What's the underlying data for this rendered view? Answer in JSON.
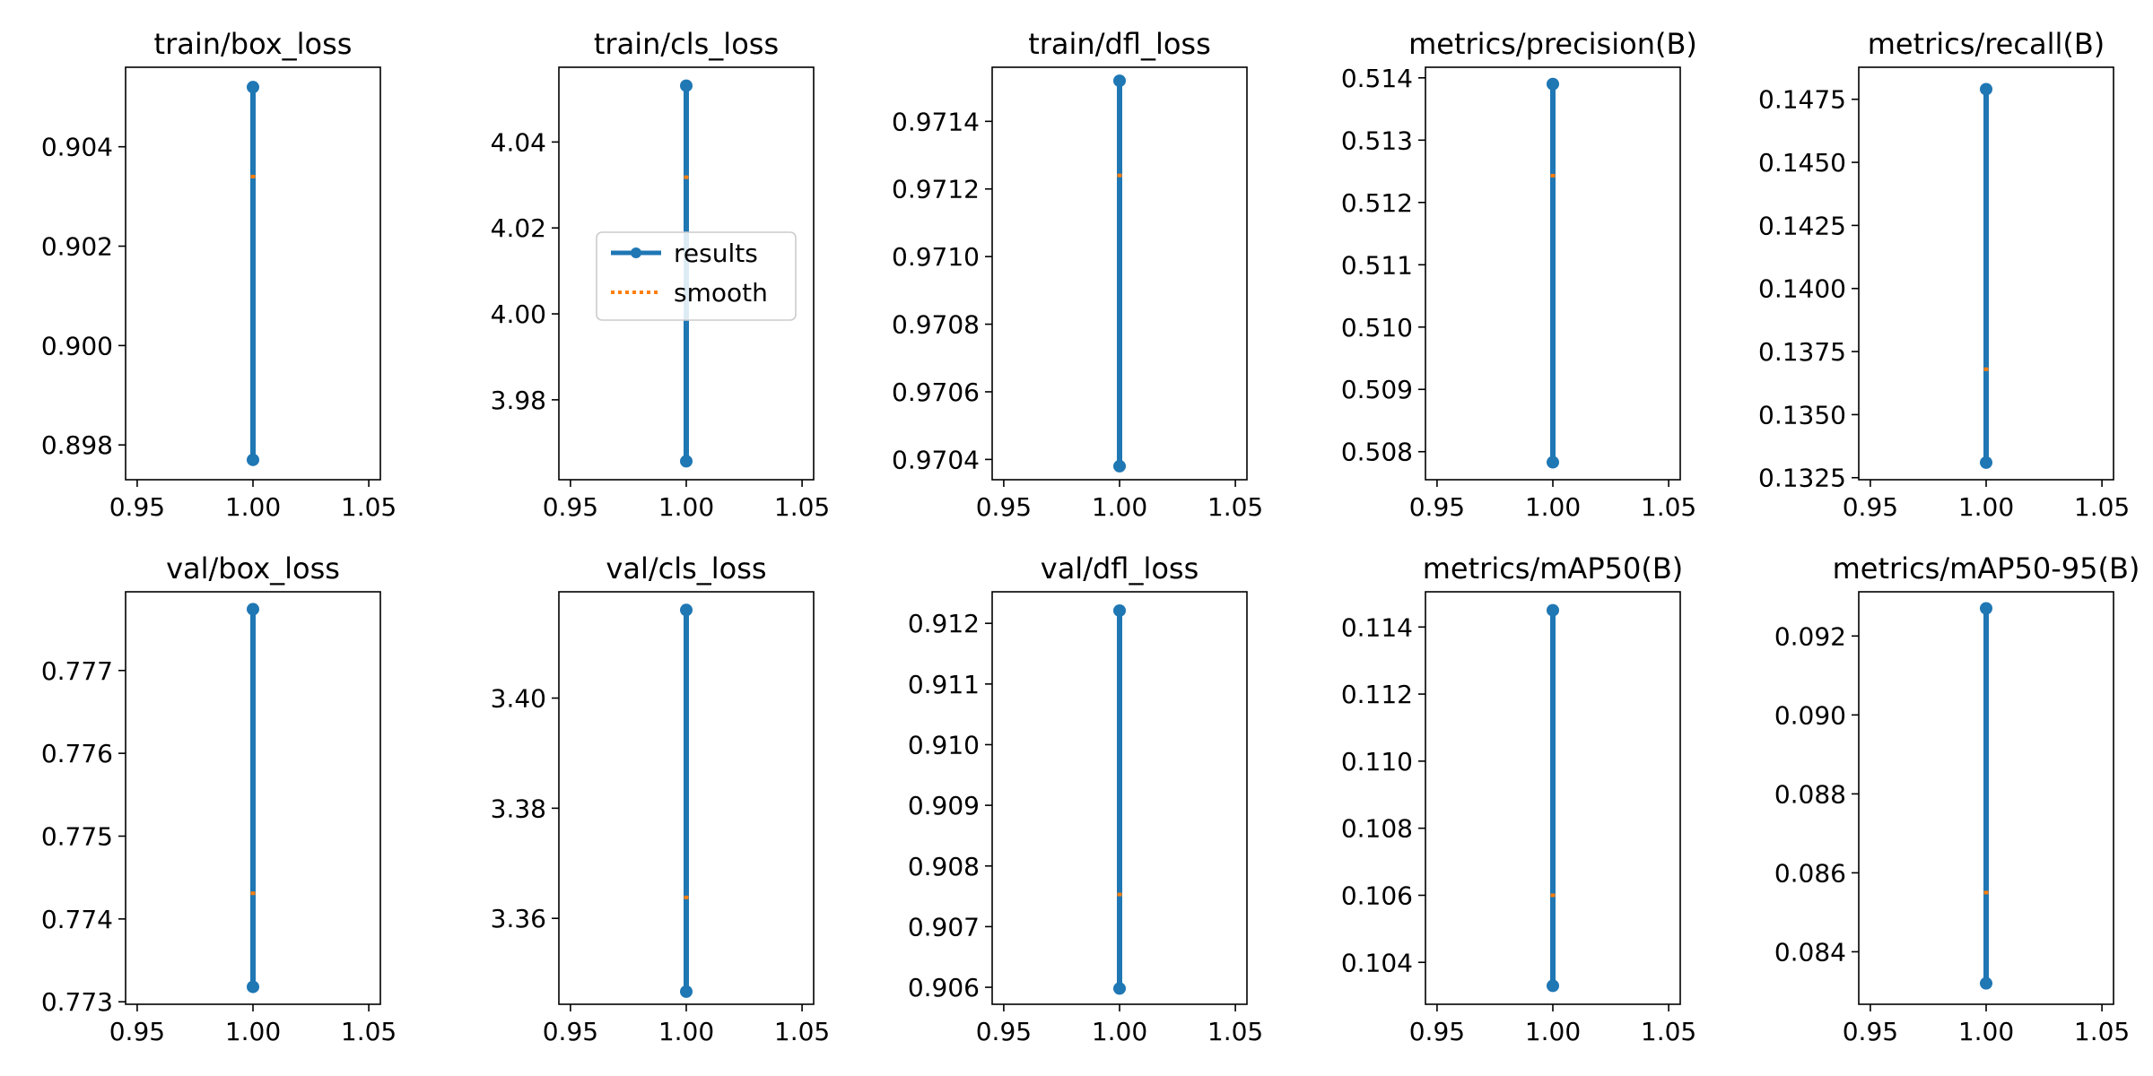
{
  "figure": {
    "colors": {
      "results": "#1f77b4",
      "smooth": "#ff7f0e",
      "axes": "#000000"
    },
    "legend": {
      "panel": 1,
      "location": "center-left",
      "entries": [
        "results",
        "smooth"
      ]
    }
  },
  "chart_data": [
    {
      "type": "line",
      "title": "train/box_loss",
      "xlim": [
        0.945,
        1.055
      ],
      "xticks": [
        "0.95",
        "1.00",
        "1.05"
      ],
      "ylim": [
        0.8973,
        0.9056
      ],
      "yticks": [
        0.898,
        0.9,
        0.902,
        0.904
      ],
      "ytick_labels": [
        "0.898",
        "0.900",
        "0.902",
        "0.904"
      ],
      "series": [
        {
          "name": "results",
          "x": [
            1.0,
            1.0
          ],
          "y": [
            0.8977,
            0.9052
          ]
        },
        {
          "name": "smooth",
          "x": [
            1.0,
            1.0
          ],
          "y": [
            0.9034,
            0.9034
          ]
        }
      ]
    },
    {
      "type": "line",
      "title": "train/cls_loss",
      "xlim": [
        0.945,
        1.055
      ],
      "xticks": [
        "0.95",
        "1.00",
        "1.05"
      ],
      "ylim": [
        3.9614,
        4.0574
      ],
      "yticks": [
        3.98,
        4.0,
        4.02,
        4.04
      ],
      "ytick_labels": [
        "3.98",
        "4.00",
        "4.02",
        "4.04"
      ],
      "series": [
        {
          "name": "results",
          "x": [
            1.0,
            1.0
          ],
          "y": [
            3.9657,
            4.0531
          ]
        },
        {
          "name": "smooth",
          "x": [
            1.0,
            1.0
          ],
          "y": [
            4.0318,
            4.0318
          ]
        }
      ]
    },
    {
      "type": "line",
      "title": "train/dfl_loss",
      "xlim": [
        0.945,
        1.055
      ],
      "xticks": [
        "0.95",
        "1.00",
        "1.05"
      ],
      "ylim": [
        0.97034,
        0.97156
      ],
      "yticks": [
        0.9704,
        0.9706,
        0.9708,
        0.971,
        0.9712,
        0.9714
      ],
      "ytick_labels": [
        "0.9704",
        "0.9706",
        "0.9708",
        "0.9710",
        "0.9712",
        "0.9714"
      ],
      "series": [
        {
          "name": "results",
          "x": [
            1.0,
            1.0
          ],
          "y": [
            0.97038,
            0.97152
          ]
        },
        {
          "name": "smooth",
          "x": [
            1.0,
            1.0
          ],
          "y": [
            0.97124,
            0.97124
          ]
        }
      ]
    },
    {
      "type": "line",
      "title": "metrics/precision(B)",
      "xlim": [
        0.945,
        1.055
      ],
      "xticks": [
        "0.95",
        "1.00",
        "1.05"
      ],
      "ylim": [
        0.50755,
        0.51417
      ],
      "yticks": [
        0.508,
        0.509,
        0.51,
        0.511,
        0.512,
        0.513,
        0.514
      ],
      "ytick_labels": [
        "0.508",
        "0.509",
        "0.510",
        "0.511",
        "0.512",
        "0.513",
        "0.514"
      ],
      "series": [
        {
          "name": "results",
          "x": [
            1.0,
            1.0
          ],
          "y": [
            0.50783,
            0.5139
          ]
        },
        {
          "name": "smooth",
          "x": [
            1.0,
            1.0
          ],
          "y": [
            0.51243,
            0.51243
          ]
        }
      ]
    },
    {
      "type": "line",
      "title": "metrics/recall(B)",
      "xlim": [
        0.945,
        1.055
      ],
      "xticks": [
        "0.95",
        "1.00",
        "1.05"
      ],
      "ylim": [
        0.13242,
        0.14877
      ],
      "yticks": [
        0.1325,
        0.135,
        0.1375,
        0.14,
        0.1425,
        0.145,
        0.1475
      ],
      "ytick_labels": [
        "0.1325",
        "0.1350",
        "0.1375",
        "0.1400",
        "0.1425",
        "0.1450",
        "0.1475"
      ],
      "series": [
        {
          "name": "results",
          "x": [
            1.0,
            1.0
          ],
          "y": [
            0.1331,
            0.1479
          ]
        },
        {
          "name": "smooth",
          "x": [
            1.0,
            1.0
          ],
          "y": [
            0.1368,
            0.1368
          ]
        }
      ]
    },
    {
      "type": "line",
      "title": "val/box_loss",
      "xlim": [
        0.945,
        1.055
      ],
      "xticks": [
        "0.95",
        "1.00",
        "1.05"
      ],
      "ylim": [
        0.77297,
        0.77795
      ],
      "yticks": [
        0.773,
        0.774,
        0.775,
        0.776,
        0.777
      ],
      "ytick_labels": [
        "0.773",
        "0.774",
        "0.775",
        "0.776",
        "0.777"
      ],
      "series": [
        {
          "name": "results",
          "x": [
            1.0,
            1.0
          ],
          "y": [
            0.77318,
            0.77774
          ]
        },
        {
          "name": "smooth",
          "x": [
            1.0,
            1.0
          ],
          "y": [
            0.77431,
            0.77431
          ]
        }
      ]
    },
    {
      "type": "line",
      "title": "val/cls_loss",
      "xlim": [
        0.945,
        1.055
      ],
      "xticks": [
        "0.95",
        "1.00",
        "1.05"
      ],
      "ylim": [
        3.3444,
        3.4193
      ],
      "yticks": [
        3.36,
        3.38,
        3.4
      ],
      "ytick_labels": [
        "3.36",
        "3.38",
        "3.40"
      ],
      "series": [
        {
          "name": "results",
          "x": [
            1.0,
            1.0
          ],
          "y": [
            3.3467,
            3.416
          ]
        },
        {
          "name": "smooth",
          "x": [
            1.0,
            1.0
          ],
          "y": [
            3.3638,
            3.3638
          ]
        }
      ]
    },
    {
      "type": "line",
      "title": "val/dfl_loss",
      "xlim": [
        0.945,
        1.055
      ],
      "xticks": [
        "0.95",
        "1.00",
        "1.05"
      ],
      "ylim": [
        0.90572,
        0.91252
      ],
      "yticks": [
        0.906,
        0.907,
        0.908,
        0.909,
        0.91,
        0.911,
        0.912
      ],
      "ytick_labels": [
        "0.906",
        "0.907",
        "0.908",
        "0.909",
        "0.910",
        "0.911",
        "0.912"
      ],
      "series": [
        {
          "name": "results",
          "x": [
            1.0,
            1.0
          ],
          "y": [
            0.90598,
            0.91221
          ]
        },
        {
          "name": "smooth",
          "x": [
            1.0,
            1.0
          ],
          "y": [
            0.90753,
            0.90753
          ]
        }
      ]
    },
    {
      "type": "line",
      "title": "metrics/mAP50(B)",
      "xlim": [
        0.945,
        1.055
      ],
      "xticks": [
        "0.95",
        "1.00",
        "1.05"
      ],
      "ylim": [
        0.10275,
        0.11505
      ],
      "yticks": [
        0.104,
        0.106,
        0.108,
        0.11,
        0.112,
        0.114
      ],
      "ytick_labels": [
        "0.104",
        "0.106",
        "0.108",
        "0.110",
        "0.112",
        "0.114"
      ],
      "series": [
        {
          "name": "results",
          "x": [
            1.0,
            1.0
          ],
          "y": [
            0.1033,
            0.1145
          ]
        },
        {
          "name": "smooth",
          "x": [
            1.0,
            1.0
          ],
          "y": [
            0.106,
            0.106
          ]
        }
      ]
    },
    {
      "type": "line",
      "title": "metrics/mAP50-95(B)",
      "xlim": [
        0.945,
        1.055
      ],
      "xticks": [
        "0.95",
        "1.00",
        "1.05"
      ],
      "ylim": [
        0.08267,
        0.09312
      ],
      "yticks": [
        0.084,
        0.086,
        0.088,
        0.09,
        0.092
      ],
      "ytick_labels": [
        "0.084",
        "0.086",
        "0.088",
        "0.090",
        "0.092"
      ],
      "series": [
        {
          "name": "results",
          "x": [
            1.0,
            1.0
          ],
          "y": [
            0.0832,
            0.0927
          ]
        },
        {
          "name": "smooth",
          "x": [
            1.0,
            1.0
          ],
          "y": [
            0.0855,
            0.0855
          ]
        }
      ]
    }
  ]
}
